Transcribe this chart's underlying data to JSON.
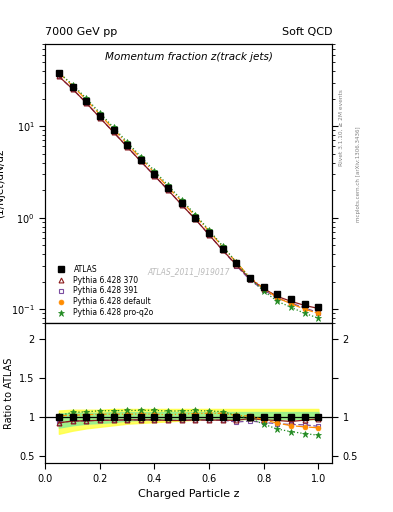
{
  "title_main": "Momentum fraction z(track jets)",
  "header_left": "7000 GeV pp",
  "header_right": "Soft QCD",
  "ylabel_main": "(1/Njet)dN/dz",
  "ylabel_ratio": "Ratio to ATLAS",
  "xlabel": "Charged Particle z",
  "watermark": "ATLAS_2011_I919017",
  "right_label_top": "Rivet 3.1.10, ≥ 2M events",
  "right_label_bottom": "mcplots.cern.ch [arXiv:1306.3436]",
  "z_values": [
    0.05,
    0.1,
    0.15,
    0.2,
    0.25,
    0.3,
    0.35,
    0.4,
    0.45,
    0.5,
    0.55,
    0.6,
    0.65,
    0.7,
    0.75,
    0.8,
    0.85,
    0.9,
    0.95,
    1.0
  ],
  "atlas_y": [
    38.0,
    27.0,
    19.0,
    13.0,
    9.0,
    6.2,
    4.3,
    3.0,
    2.1,
    1.45,
    1.0,
    0.68,
    0.46,
    0.32,
    0.22,
    0.175,
    0.145,
    0.13,
    0.115,
    0.105
  ],
  "py370_y": [
    35.0,
    25.5,
    18.0,
    12.4,
    8.6,
    5.95,
    4.12,
    2.88,
    2.0,
    1.38,
    0.96,
    0.65,
    0.44,
    0.305,
    0.215,
    0.168,
    0.138,
    0.122,
    0.11,
    0.102
  ],
  "py391_y": [
    35.0,
    25.5,
    18.0,
    12.4,
    8.6,
    5.95,
    4.12,
    2.88,
    2.0,
    1.38,
    0.96,
    0.65,
    0.44,
    0.298,
    0.208,
    0.162,
    0.132,
    0.117,
    0.103,
    0.092
  ],
  "pydef_y": [
    38.5,
    27.5,
    19.5,
    13.4,
    9.3,
    6.4,
    4.45,
    3.1,
    2.15,
    1.5,
    1.04,
    0.71,
    0.48,
    0.325,
    0.222,
    0.168,
    0.133,
    0.115,
    0.1,
    0.09
  ],
  "pyq2o_y": [
    38.5,
    28.5,
    20.2,
    14.0,
    9.7,
    6.7,
    4.65,
    3.25,
    2.25,
    1.56,
    1.08,
    0.73,
    0.49,
    0.325,
    0.215,
    0.158,
    0.122,
    0.105,
    0.09,
    0.08
  ],
  "band_yellow_lo": [
    0.78,
    0.82,
    0.85,
    0.87,
    0.89,
    0.91,
    0.92,
    0.93,
    0.94,
    0.95,
    0.96,
    0.97,
    0.97,
    0.97,
    0.97,
    0.97,
    0.97,
    0.97,
    0.97,
    0.97
  ],
  "band_yellow_hi": [
    1.08,
    1.09,
    1.09,
    1.09,
    1.1,
    1.1,
    1.1,
    1.1,
    1.1,
    1.1,
    1.1,
    1.1,
    1.1,
    1.1,
    1.1,
    1.1,
    1.1,
    1.1,
    1.1,
    1.1
  ],
  "band_green_lo": [
    0.86,
    0.89,
    0.91,
    0.92,
    0.93,
    0.95,
    0.96,
    0.96,
    0.96,
    0.97,
    0.97,
    0.97,
    0.97,
    0.97,
    0.97,
    0.97,
    0.97,
    0.97,
    0.97,
    0.97
  ],
  "band_green_hi": [
    1.04,
    1.05,
    1.05,
    1.05,
    1.06,
    1.06,
    1.06,
    1.06,
    1.06,
    1.06,
    1.06,
    1.06,
    1.06,
    1.06,
    1.06,
    1.06,
    1.06,
    1.06,
    1.06,
    1.06
  ],
  "color_atlas": "#000000",
  "color_py370": "#8B1A1A",
  "color_py391": "#7B4EA0",
  "color_pydef": "#FF8C00",
  "color_pyq2o": "#228B22",
  "color_band_yellow": "#FFFF44",
  "color_band_green": "#90EE90",
  "legend_entries": [
    "ATLAS",
    "Pythia 6.428 370",
    "Pythia 6.428 391",
    "Pythia 6.428 default",
    "Pythia 6.428 pro-q2o"
  ],
  "ylim_main": [
    0.07,
    80
  ],
  "ylim_ratio": [
    0.4,
    2.2
  ],
  "xlim": [
    0.0,
    1.05
  ],
  "ratio_yticks": [
    0.5,
    1.0,
    1.5,
    2.0
  ],
  "ratio_yticklabels": [
    "0.5",
    "1",
    "1.5",
    "2"
  ]
}
